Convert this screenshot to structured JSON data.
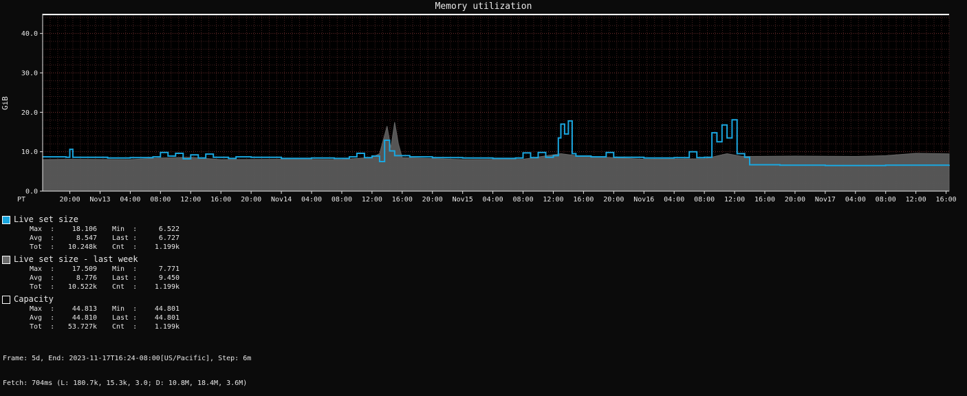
{
  "chart_data": {
    "type": "area",
    "title": "Memory utilization",
    "ylabel": "GiB",
    "ylim": [
      0,
      45
    ],
    "y_ticks": [
      "0.0",
      "10.0",
      "20.0",
      "30.0",
      "40.0"
    ],
    "x_timezone_label": "PT",
    "x_start": "2023-11-12T16:24",
    "x_end": "2023-11-17T16:24",
    "x_ticks": [
      {
        "t": "2023-11-12T20:00",
        "label": "20:00"
      },
      {
        "t": "2023-11-13T00:00",
        "label": "Nov13"
      },
      {
        "t": "2023-11-13T04:00",
        "label": "04:00"
      },
      {
        "t": "2023-11-13T08:00",
        "label": "08:00"
      },
      {
        "t": "2023-11-13T12:00",
        "label": "12:00"
      },
      {
        "t": "2023-11-13T16:00",
        "label": "16:00"
      },
      {
        "t": "2023-11-13T20:00",
        "label": "20:00"
      },
      {
        "t": "2023-11-14T00:00",
        "label": "Nov14"
      },
      {
        "t": "2023-11-14T04:00",
        "label": "04:00"
      },
      {
        "t": "2023-11-14T08:00",
        "label": "08:00"
      },
      {
        "t": "2023-11-14T12:00",
        "label": "12:00"
      },
      {
        "t": "2023-11-14T16:00",
        "label": "16:00"
      },
      {
        "t": "2023-11-14T20:00",
        "label": "20:00"
      },
      {
        "t": "2023-11-15T00:00",
        "label": "Nov15"
      },
      {
        "t": "2023-11-15T04:00",
        "label": "04:00"
      },
      {
        "t": "2023-11-15T08:00",
        "label": "08:00"
      },
      {
        "t": "2023-11-15T12:00",
        "label": "12:00"
      },
      {
        "t": "2023-11-15T16:00",
        "label": "16:00"
      },
      {
        "t": "2023-11-15T20:00",
        "label": "20:00"
      },
      {
        "t": "2023-11-16T00:00",
        "label": "Nov16"
      },
      {
        "t": "2023-11-16T04:00",
        "label": "04:00"
      },
      {
        "t": "2023-11-16T08:00",
        "label": "08:00"
      },
      {
        "t": "2023-11-16T12:00",
        "label": "12:00"
      },
      {
        "t": "2023-11-16T16:00",
        "label": "16:00"
      },
      {
        "t": "2023-11-16T20:00",
        "label": "20:00"
      },
      {
        "t": "2023-11-17T00:00",
        "label": "Nov17"
      },
      {
        "t": "2023-11-17T04:00",
        "label": "04:00"
      },
      {
        "t": "2023-11-17T08:00",
        "label": "08:00"
      },
      {
        "t": "2023-11-17T12:00",
        "label": "12:00"
      },
      {
        "t": "2023-11-17T16:00",
        "label": "16:00"
      }
    ],
    "grid": true,
    "series": [
      {
        "name": "Live set size",
        "color": "#1aa7e0",
        "style": "line",
        "points": [
          [
            "2023-11-12T16:24",
            8.7
          ],
          [
            "2023-11-12T19:30",
            8.6
          ],
          [
            "2023-11-12T20:00",
            10.6
          ],
          [
            "2023-11-12T20:24",
            8.6
          ],
          [
            "2023-11-13T01:00",
            8.4
          ],
          [
            "2023-11-13T04:00",
            8.5
          ],
          [
            "2023-11-13T07:00",
            8.7
          ],
          [
            "2023-11-13T08:00",
            9.8
          ],
          [
            "2023-11-13T09:00",
            8.9
          ],
          [
            "2023-11-13T10:00",
            9.6
          ],
          [
            "2023-11-13T11:00",
            8.2
          ],
          [
            "2023-11-13T12:00",
            9.2
          ],
          [
            "2023-11-13T13:00",
            8.4
          ],
          [
            "2023-11-13T14:00",
            9.4
          ],
          [
            "2023-11-13T15:00",
            8.6
          ],
          [
            "2023-11-13T17:00",
            8.3
          ],
          [
            "2023-11-13T18:00",
            8.7
          ],
          [
            "2023-11-13T20:00",
            8.6
          ],
          [
            "2023-11-14T00:00",
            8.3
          ],
          [
            "2023-11-14T04:00",
            8.4
          ],
          [
            "2023-11-14T07:00",
            8.3
          ],
          [
            "2023-11-14T09:00",
            8.7
          ],
          [
            "2023-11-14T10:00",
            9.6
          ],
          [
            "2023-11-14T11:00",
            8.5
          ],
          [
            "2023-11-14T12:00",
            8.9
          ],
          [
            "2023-11-14T13:00",
            7.5
          ],
          [
            "2023-11-14T13:40",
            12.9
          ],
          [
            "2023-11-14T14:20",
            10.2
          ],
          [
            "2023-11-14T15:00",
            9.0
          ],
          [
            "2023-11-14T17:00",
            8.7
          ],
          [
            "2023-11-14T20:00",
            8.5
          ],
          [
            "2023-11-15T00:00",
            8.4
          ],
          [
            "2023-11-15T04:00",
            8.3
          ],
          [
            "2023-11-15T07:00",
            8.4
          ],
          [
            "2023-11-15T08:00",
            9.7
          ],
          [
            "2023-11-15T09:00",
            8.5
          ],
          [
            "2023-11-15T10:00",
            9.8
          ],
          [
            "2023-11-15T11:00",
            8.6
          ],
          [
            "2023-11-15T12:00",
            9.0
          ],
          [
            "2023-11-15T12:40",
            13.5
          ],
          [
            "2023-11-15T13:00",
            17.0
          ],
          [
            "2023-11-15T13:30",
            14.5
          ],
          [
            "2023-11-15T14:00",
            17.8
          ],
          [
            "2023-11-15T14:30",
            9.5
          ],
          [
            "2023-11-15T15:00",
            8.9
          ],
          [
            "2023-11-15T17:00",
            8.7
          ],
          [
            "2023-11-15T19:00",
            9.8
          ],
          [
            "2023-11-15T20:00",
            8.6
          ],
          [
            "2023-11-16T00:00",
            8.4
          ],
          [
            "2023-11-16T04:00",
            8.5
          ],
          [
            "2023-11-16T06:00",
            10.0
          ],
          [
            "2023-11-16T07:00",
            8.5
          ],
          [
            "2023-11-16T08:00",
            8.6
          ],
          [
            "2023-11-16T09:00",
            14.8
          ],
          [
            "2023-11-16T09:40",
            12.5
          ],
          [
            "2023-11-16T10:20",
            16.8
          ],
          [
            "2023-11-16T11:00",
            13.5
          ],
          [
            "2023-11-16T11:40",
            18.1
          ],
          [
            "2023-11-16T12:20",
            9.5
          ],
          [
            "2023-11-16T13:20",
            8.6
          ],
          [
            "2023-11-16T14:00",
            6.7
          ],
          [
            "2023-11-16T18:00",
            6.6
          ],
          [
            "2023-11-17T00:00",
            6.5
          ],
          [
            "2023-11-17T08:00",
            6.6
          ],
          [
            "2023-11-17T16:24",
            6.7
          ]
        ]
      },
      {
        "name": "Live set size - last week",
        "color": "#6b6b6b",
        "style": "area",
        "points": [
          [
            "2023-11-12T16:24",
            8.0
          ],
          [
            "2023-11-12T20:00",
            8.1
          ],
          [
            "2023-11-13T04:00",
            8.0
          ],
          [
            "2023-11-13T08:00",
            8.4
          ],
          [
            "2023-11-13T12:00",
            8.6
          ],
          [
            "2023-11-13T16:00",
            8.0
          ],
          [
            "2023-11-14T00:00",
            8.1
          ],
          [
            "2023-11-14T08:00",
            8.0
          ],
          [
            "2023-11-14T12:00",
            8.6
          ],
          [
            "2023-11-14T13:00",
            9.5
          ],
          [
            "2023-11-14T14:00",
            16.5
          ],
          [
            "2023-11-14T14:30",
            11.0
          ],
          [
            "2023-11-14T15:00",
            17.5
          ],
          [
            "2023-11-14T15:30",
            12.0
          ],
          [
            "2023-11-14T16:00",
            8.5
          ],
          [
            "2023-11-15T00:00",
            8.0
          ],
          [
            "2023-11-15T08:00",
            8.1
          ],
          [
            "2023-11-15T13:00",
            9.5
          ],
          [
            "2023-11-15T15:00",
            9.0
          ],
          [
            "2023-11-16T00:00",
            8.1
          ],
          [
            "2023-11-16T08:00",
            8.2
          ],
          [
            "2023-11-16T11:00",
            9.5
          ],
          [
            "2023-11-16T13:00",
            8.8
          ],
          [
            "2023-11-16T14:00",
            8.8
          ],
          [
            "2023-11-16T20:00",
            8.9
          ],
          [
            "2023-11-17T04:00",
            8.8
          ],
          [
            "2023-11-17T08:00",
            9.0
          ],
          [
            "2023-11-17T12:00",
            9.6
          ],
          [
            "2023-11-17T16:24",
            9.45
          ]
        ]
      },
      {
        "name": "Capacity",
        "color": "#ffffff",
        "style": "line",
        "points": [
          [
            "2023-11-12T16:24",
            44.81
          ],
          [
            "2023-11-17T16:24",
            44.801
          ]
        ]
      }
    ],
    "legend": [
      {
        "name": "Live set size",
        "color": "#1aa7e0",
        "stats": [
          [
            "Max",
            "18.106",
            "Min",
            "6.522"
          ],
          [
            "Avg",
            "8.547",
            "Last",
            "6.727"
          ],
          [
            "Tot",
            "10.248k",
            "Cnt",
            "1.199k"
          ]
        ]
      },
      {
        "name": "Live set size - last week",
        "color": "#6b6b6b",
        "stats": [
          [
            "Max",
            "17.509",
            "Min",
            "7.771"
          ],
          [
            "Avg",
            "8.776",
            "Last",
            "9.450"
          ],
          [
            "Tot",
            "10.522k",
            "Cnt",
            "1.199k"
          ]
        ]
      },
      {
        "name": "Capacity",
        "color": "#0b0b0b",
        "stats": [
          [
            "Max",
            "44.813",
            "Min",
            "44.801"
          ],
          [
            "Avg",
            "44.810",
            "Last",
            "44.801"
          ],
          [
            "Tot",
            "53.727k",
            "Cnt",
            "1.199k"
          ]
        ]
      }
    ],
    "legend_position": "bottom-left"
  },
  "footer": {
    "line1": "Frame: 5d, End: 2023-11-17T16:24-08:00[US/Pacific], Step: 6m",
    "line2": "Fetch: 704ms (L: 180.7k, 15.3k, 3.0; D: 10.8M, 18.4M, 3.6M)"
  },
  "colors": {
    "background": "#0b0b0b",
    "plot_background": "#000000",
    "grid_minor": "#4a2020",
    "grid_major": "#6a3030",
    "text": "#e8e8e8"
  }
}
